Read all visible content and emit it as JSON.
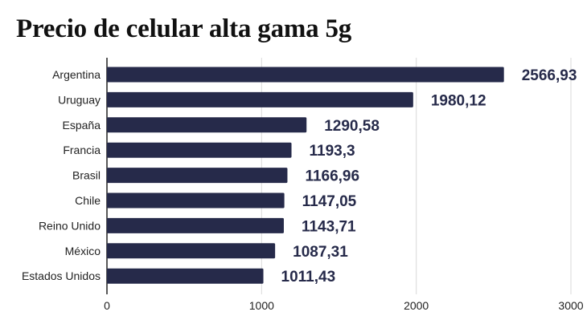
{
  "chart_data": {
    "type": "bar",
    "orientation": "horizontal",
    "title": "Precio de celular alta gama 5g",
    "categories": [
      "Argentina",
      "Uruguay",
      "España",
      "Francia",
      "Brasil",
      "Chile",
      "Reino Unido",
      "México",
      "Estados Unidos"
    ],
    "values": [
      2566.93,
      1980.12,
      1290.58,
      1193.3,
      1166.96,
      1147.05,
      1143.71,
      1087.31,
      1011.43
    ],
    "value_labels": [
      "2566,93",
      "1980,12",
      "1290,58",
      "1193,3",
      "1166,96",
      "1147,05",
      "1143,71",
      "1087,31",
      "1011,43"
    ],
    "xlim": [
      0,
      3000
    ],
    "xticks": [
      0,
      1000,
      2000,
      3000
    ],
    "xtick_labels": [
      "0",
      "1000",
      "2000",
      "3000"
    ],
    "xlabel": "",
    "ylabel": "",
    "grid": true,
    "bar_color": "#262a4a",
    "grid_color": "#d9d9d9"
  }
}
